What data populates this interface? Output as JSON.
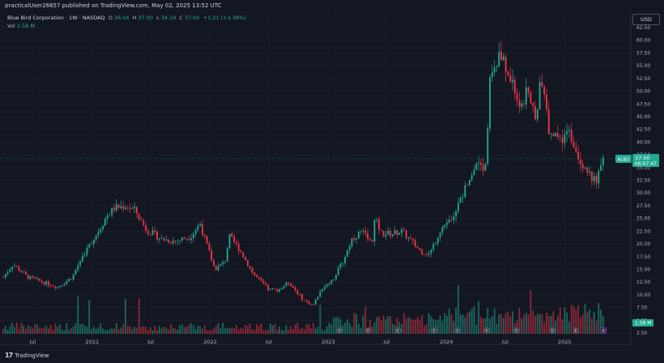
{
  "publisher": "practicalUser26657 published on TradingView.com, May 02, 2025 13:52 UTC",
  "legend": {
    "symbol": "Blue Bird Corporation · 1W · NASDAQ",
    "open_label": "O",
    "open": "36.04",
    "high_label": "H",
    "high": "37.00",
    "low_label": "L",
    "low": "34.19",
    "close_label": "C",
    "close": "37.00",
    "change": "+1.21 (+3.38%)",
    "volume_label": "Vol",
    "volume": "1.58 M"
  },
  "currency": "USD",
  "price_tag": {
    "symbol_code": "BLBD",
    "price": "37.00",
    "countdown": "06:07:47"
  },
  "volume_tag": "1.58 M",
  "footer_brand": "TradingView",
  "colors": {
    "up": "#22ab94",
    "down": "#f23645",
    "background": "#131722",
    "grid": "#1e222d",
    "axis_text": "#b2b5be",
    "earnings_marker": "#787b86"
  },
  "chart_data": {
    "type": "candlestick",
    "y_axis": {
      "min": 2.5,
      "max": 62.5,
      "ticks": [
        "2.50",
        "5.00",
        "7.50",
        "10.00",
        "12.50",
        "15.00",
        "17.50",
        "20.00",
        "22.50",
        "25.00",
        "27.50",
        "30.00",
        "32.50",
        "35.00",
        "37.50",
        "40.00",
        "42.50",
        "45.00",
        "47.50",
        "50.00",
        "52.50",
        "55.00",
        "57.50",
        "60.00",
        "62.50"
      ]
    },
    "x_axis": {
      "labels": [
        "Jul",
        "2021",
        "Jul",
        "2022",
        "Jul",
        "2023",
        "Jul",
        "2024",
        "Jul",
        "2025"
      ],
      "start": "2020-04-01",
      "end": "2025-07-22"
    },
    "earnings_marker_label": "E",
    "price_anchors": [
      [
        "2020-04-01",
        13.5
      ],
      [
        "2020-05-01",
        16
      ],
      [
        "2020-06-15",
        13.5
      ],
      [
        "2020-08-01",
        12.5
      ],
      [
        "2020-09-15",
        11.5
      ],
      [
        "2020-11-01",
        13.5
      ],
      [
        "2020-12-01",
        17.5
      ],
      [
        "2021-01-15",
        22
      ],
      [
        "2021-02-15",
        25.5
      ],
      [
        "2021-03-10",
        27
      ],
      [
        "2021-04-15",
        27.5
      ],
      [
        "2021-05-15",
        26.5
      ],
      [
        "2021-06-15",
        23
      ],
      [
        "2021-08-01",
        21
      ],
      [
        "2021-09-15",
        20.5
      ],
      [
        "2021-11-01",
        21.5
      ],
      [
        "2021-12-01",
        24
      ],
      [
        "2021-12-15",
        21
      ],
      [
        "2022-01-15",
        15
      ],
      [
        "2022-02-15",
        16.5
      ],
      [
        "2022-03-01",
        21.5
      ],
      [
        "2022-04-01",
        19
      ],
      [
        "2022-05-15",
        14
      ],
      [
        "2022-07-01",
        11
      ],
      [
        "2022-08-01",
        11
      ],
      [
        "2022-09-01",
        12.5
      ],
      [
        "2022-10-15",
        9
      ],
      [
        "2022-11-15",
        8
      ],
      [
        "2022-12-15",
        11.5
      ],
      [
        "2023-01-15",
        13
      ],
      [
        "2023-02-15",
        16.5
      ],
      [
        "2023-03-15",
        21
      ],
      [
        "2023-04-15",
        22.5
      ],
      [
        "2023-05-15",
        20
      ],
      [
        "2023-05-25",
        25
      ],
      [
        "2023-06-15",
        22
      ],
      [
        "2023-07-15",
        22
      ],
      [
        "2023-08-15",
        22.5
      ],
      [
        "2023-09-15",
        20.5
      ],
      [
        "2023-10-15",
        18.5
      ],
      [
        "2023-11-10",
        18
      ],
      [
        "2023-12-15",
        23
      ],
      [
        "2024-01-15",
        25
      ],
      [
        "2024-02-15",
        29
      ],
      [
        "2024-03-15",
        33.5
      ],
      [
        "2024-04-15",
        37
      ],
      [
        "2024-04-30",
        34
      ],
      [
        "2024-05-15",
        52
      ],
      [
        "2024-06-15",
        57
      ],
      [
        "2024-07-15",
        53
      ],
      [
        "2024-08-15",
        47
      ],
      [
        "2024-09-10",
        50
      ],
      [
        "2024-10-01",
        44
      ],
      [
        "2024-10-20",
        52
      ],
      [
        "2024-11-15",
        42
      ],
      [
        "2024-12-15",
        40
      ],
      [
        "2025-01-15",
        42
      ],
      [
        "2025-02-15",
        37
      ],
      [
        "2025-03-15",
        34
      ],
      [
        "2025-04-10",
        32
      ],
      [
        "2025-04-30",
        37
      ]
    ]
  }
}
